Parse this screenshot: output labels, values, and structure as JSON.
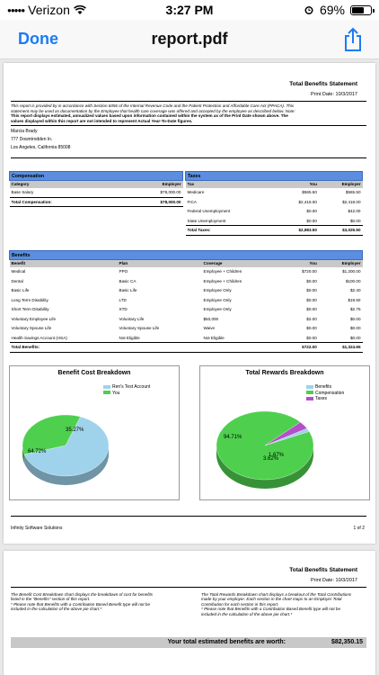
{
  "status_bar": {
    "carrier": "Verizon",
    "time": "3:27 PM",
    "battery": "69%",
    "battery_level": 0.69
  },
  "nav": {
    "done": "Done",
    "title": "report.pdf"
  },
  "page1": {
    "title": "Total Benefits Statement",
    "print_date": "Print Date: 10/3/2017",
    "disclaimer_lines": [
      "This report is provided by  in accordance with Section 6056 of the Internal Revenue Code and the Patient Protection and Affordable Care Act (PPACA). This",
      "statement may be used as documentation by the Employee that health care coverage was offered and accepted by the employee as described below.  Note:"
    ],
    "disclaimer_bold_lines": [
      "This report displays estimated, annualized values based upon information contained within the system as of the Print Date shown above.  The",
      "values displayed within this report are not intended to represent Actual Year-To-Date figures."
    ],
    "address": [
      "Marcia Brady",
      "777 Downtrodden ln.",
      "Los Angeles, California 85008"
    ],
    "compensation": {
      "header": "Compensation",
      "columns": [
        "Category",
        "Employer"
      ],
      "rows": [
        [
          "Base Salary",
          "$78,000.00"
        ]
      ],
      "total": [
        "Total Compensation:",
        "$78,000.00"
      ]
    },
    "taxes": {
      "header": "Taxes",
      "columns": [
        "Tax",
        "You",
        "Employer"
      ],
      "rows": [
        [
          "Medicare",
          "$565.50",
          "$565.50"
        ],
        [
          "FICA",
          "$2,418.00",
          "$2,418.00"
        ],
        [
          "Federal Unemployment",
          "$0.00",
          "$42.00"
        ],
        [
          "State Unemployment",
          "$0.00",
          "$0.00"
        ]
      ],
      "total": [
        "Total Taxes:",
        "$2,983.50",
        "$3,025.50"
      ]
    },
    "benefits": {
      "header": "Benefits",
      "columns": [
        "Benefit",
        "Plan",
        "Coverage",
        "You",
        "Employer"
      ],
      "rows": [
        [
          "Medical",
          "PPO",
          "Employee + Children",
          "$720.00",
          "$1,200.00"
        ],
        [
          "Dental",
          "Basic CA",
          "Employee + Children",
          "$0.00",
          "$100.00"
        ],
        [
          "Basic Life",
          "Basic Life",
          "Employee Only",
          "$0.00",
          "$2.40"
        ],
        [
          "Long Term Disability",
          "LTD",
          "Employee Only",
          "$0.00",
          "$19.50"
        ],
        [
          "Short Term Disability",
          "STD",
          "Employee Only",
          "$0.00",
          "$2.75"
        ],
        [
          "Voluntary Employee Life",
          "Voluntary Life",
          "$50,000",
          "$2.00",
          "$0.00"
        ],
        [
          "Voluntary Spouse Life",
          "Voluntary Spouse Life",
          "Waive",
          "$0.00",
          "$0.00"
        ],
        [
          "Health Savings Account (HSA)",
          "Not Eligible",
          "Not Eligible",
          "$0.00",
          "$0.00"
        ]
      ],
      "total": [
        "Total Benefits:",
        "$722.00",
        "$1,324.65"
      ]
    },
    "footer_left": "Infinity Software Solutions",
    "footer_right": "1 of 2"
  },
  "chart_data": [
    {
      "type": "pie",
      "title": "Benefit Cost Breakdown",
      "labels": [
        "Ren's Test Account",
        "You"
      ],
      "values": [
        64.72,
        35.27
      ],
      "value_labels": [
        "64.72%",
        "35.27%"
      ],
      "colors": [
        "#9fd3ec",
        "#4ed04e"
      ],
      "legend": "top-right"
    },
    {
      "type": "pie",
      "title": "Total Rewards Breakdown",
      "labels": [
        "Benefits",
        "Compensation",
        "Taxes"
      ],
      "values": [
        1.67,
        94.71,
        3.62
      ],
      "value_labels": [
        "1.67%",
        "94.71%",
        "3.62%"
      ],
      "colors": [
        "#9fd3ec",
        "#4ed04e",
        "#b44fc8"
      ],
      "legend": "top-right"
    }
  ],
  "page2": {
    "title": "Total Benefits Statement",
    "print_date": "Print Date: 10/3/2017",
    "note_left": [
      "The Benefit Cost Breakdown chart displays the breakdown of cost for benefits",
      "listed in the \"Benefits\" section of this report.",
      "* Please note that Benefits with a Contribution Based Benefit type will not be",
      "included in the calculation of the above pie chart.*"
    ],
    "note_right": [
      "The Total Rewards Breakdown chart displays a breakout of the Total Contributions",
      "made by your employer.  Each section in the chart maps to an Employer Total",
      "Contribution for each section in this report.",
      "* Please note that Benefits with a Contribution Based Benefit type will not be",
      "included in the calculation of the above pie chart.*"
    ],
    "worth_label": "Your total estimated benefits are worth:",
    "worth_value": "$82,350.15"
  }
}
